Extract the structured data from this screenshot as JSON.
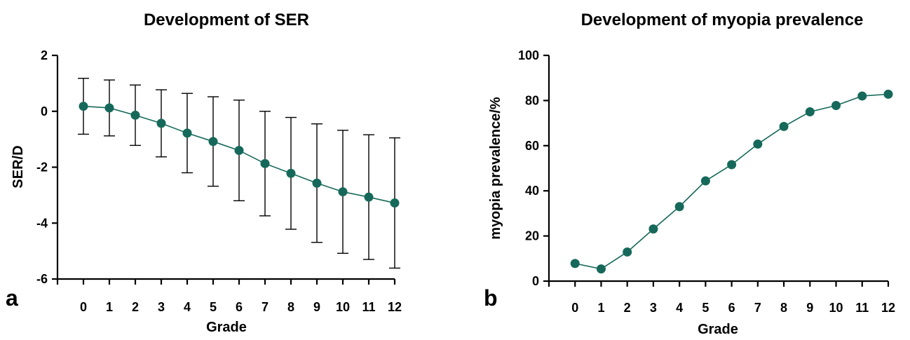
{
  "colors": {
    "series": "#16695a",
    "axis": "#000000"
  },
  "chart_data": [
    {
      "type": "line",
      "panel_label": "a",
      "title": "Development of SER",
      "xlabel": "Grade",
      "ylabel": "SER/D",
      "categories": [
        "0",
        "1",
        "2",
        "3",
        "4",
        "5",
        "6",
        "7",
        "8",
        "9",
        "10",
        "11",
        "12"
      ],
      "x": [
        0,
        1,
        2,
        3,
        4,
        5,
        6,
        7,
        8,
        9,
        10,
        11,
        12
      ],
      "xlim": [
        -1,
        12
      ],
      "ylim": [
        -6,
        2
      ],
      "yticks": [
        -6,
        -4,
        -2,
        0,
        2
      ],
      "ytick_labels": [
        "-6",
        "-4",
        "-2",
        "0",
        "2"
      ],
      "series": [
        {
          "values": [
            0.18,
            0.12,
            -0.14,
            -0.43,
            -0.78,
            -1.08,
            -1.4,
            -1.87,
            -2.22,
            -2.57,
            -2.88,
            -3.07,
            -3.28
          ],
          "error": [
            1.0,
            1.0,
            1.08,
            1.2,
            1.42,
            1.6,
            1.8,
            1.87,
            2.0,
            2.12,
            2.2,
            2.23,
            2.33
          ]
        }
      ]
    },
    {
      "type": "line",
      "panel_label": "b",
      "title": "Development of myopia prevalence",
      "xlabel": "Grade",
      "ylabel": "myopia prevalence/%",
      "categories": [
        "0",
        "1",
        "2",
        "3",
        "4",
        "5",
        "6",
        "7",
        "8",
        "9",
        "10",
        "11",
        "12"
      ],
      "x": [
        0,
        1,
        2,
        3,
        4,
        5,
        6,
        7,
        8,
        9,
        10,
        11,
        12
      ],
      "xlim": [
        -1,
        12
      ],
      "ylim": [
        0,
        100
      ],
      "yticks": [
        0,
        20,
        40,
        60,
        80,
        100
      ],
      "ytick_labels": [
        "0",
        "20",
        "40",
        "60",
        "80",
        "100"
      ],
      "series": [
        {
          "values": [
            7.8,
            5.4,
            12.9,
            23.1,
            33.0,
            44.4,
            51.6,
            60.7,
            68.5,
            75.0,
            77.8,
            82.0,
            82.8
          ]
        }
      ]
    }
  ]
}
